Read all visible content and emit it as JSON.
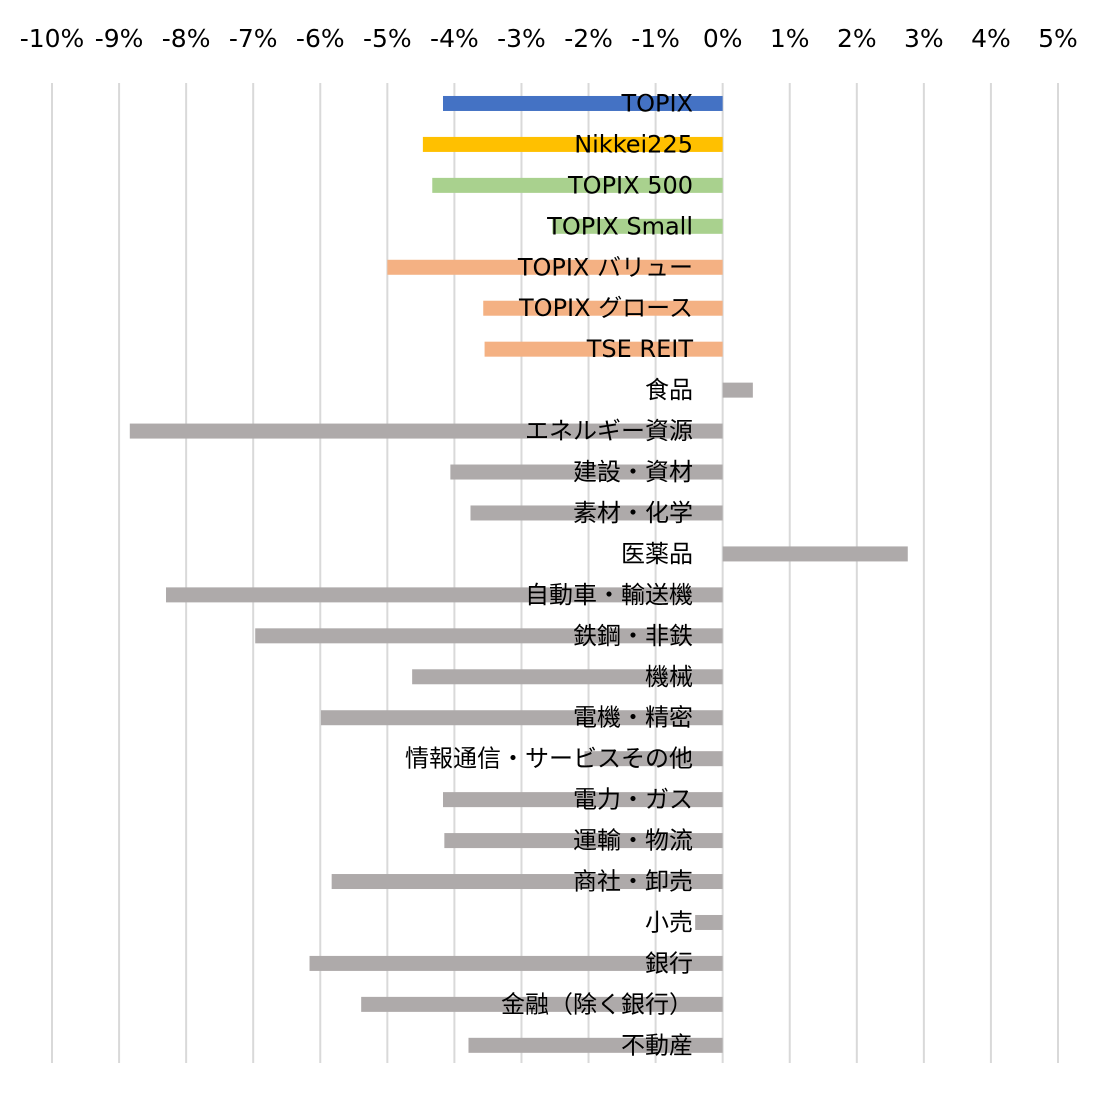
{
  "chart_data": {
    "type": "bar",
    "orientation": "horizontal",
    "title": "",
    "xlabel": "",
    "ylabel": "",
    "xlim": [
      -10,
      5
    ],
    "x_ticks": [
      -10,
      -9,
      -8,
      -7,
      -6,
      -5,
      -4,
      -3,
      -2,
      -1,
      0,
      1,
      2,
      3,
      4,
      5
    ],
    "x_tick_labels": [
      "-10%",
      "-9%",
      "-8%",
      "-7%",
      "-6%",
      "-5%",
      "-4%",
      "-3%",
      "-2%",
      "-1%",
      "0%",
      "1%",
      "2%",
      "3%",
      "4%",
      "5%"
    ],
    "x_axis_position": "top",
    "grid": true,
    "legend": "none",
    "categories": [
      "TOPIX",
      "Nikkei225",
      "TOPIX 500",
      "TOPIX Small",
      "TOPIX バリュー",
      "TOPIX グロース",
      "TSE REIT",
      "食品",
      "エネルギー資源",
      "建設・資材",
      "素材・化学",
      "医薬品",
      "自動車・輸送機",
      "鉄鋼・非鉄",
      "機械",
      "電機・精密",
      "情報通信・サービスその他",
      "電力・ガス",
      "運輸・物流",
      "商社・卸売",
      "小売",
      "銀行",
      "金融（除く銀行）",
      "不動産"
    ],
    "values": [
      -4.17,
      -4.47,
      -4.33,
      -2.54,
      -5.0,
      -3.57,
      -3.55,
      0.45,
      -8.84,
      -4.06,
      -3.76,
      2.76,
      -8.3,
      -6.97,
      -4.63,
      -5.99,
      -2.06,
      -4.17,
      -4.15,
      -5.83,
      -0.41,
      -6.16,
      -5.39,
      -3.79
    ],
    "colors": [
      "#4472c4",
      "#ffc000",
      "#a9d18e",
      "#a9d18e",
      "#f4b183",
      "#f4b183",
      "#f4b183",
      "#aeaaaa",
      "#aeaaaa",
      "#aeaaaa",
      "#aeaaaa",
      "#aeaaaa",
      "#aeaaaa",
      "#aeaaaa",
      "#aeaaaa",
      "#aeaaaa",
      "#aeaaaa",
      "#aeaaaa",
      "#aeaaaa",
      "#aeaaaa",
      "#aeaaaa",
      "#aeaaaa",
      "#aeaaaa",
      "#aeaaaa"
    ],
    "grid_color": "#d9d9d9"
  }
}
